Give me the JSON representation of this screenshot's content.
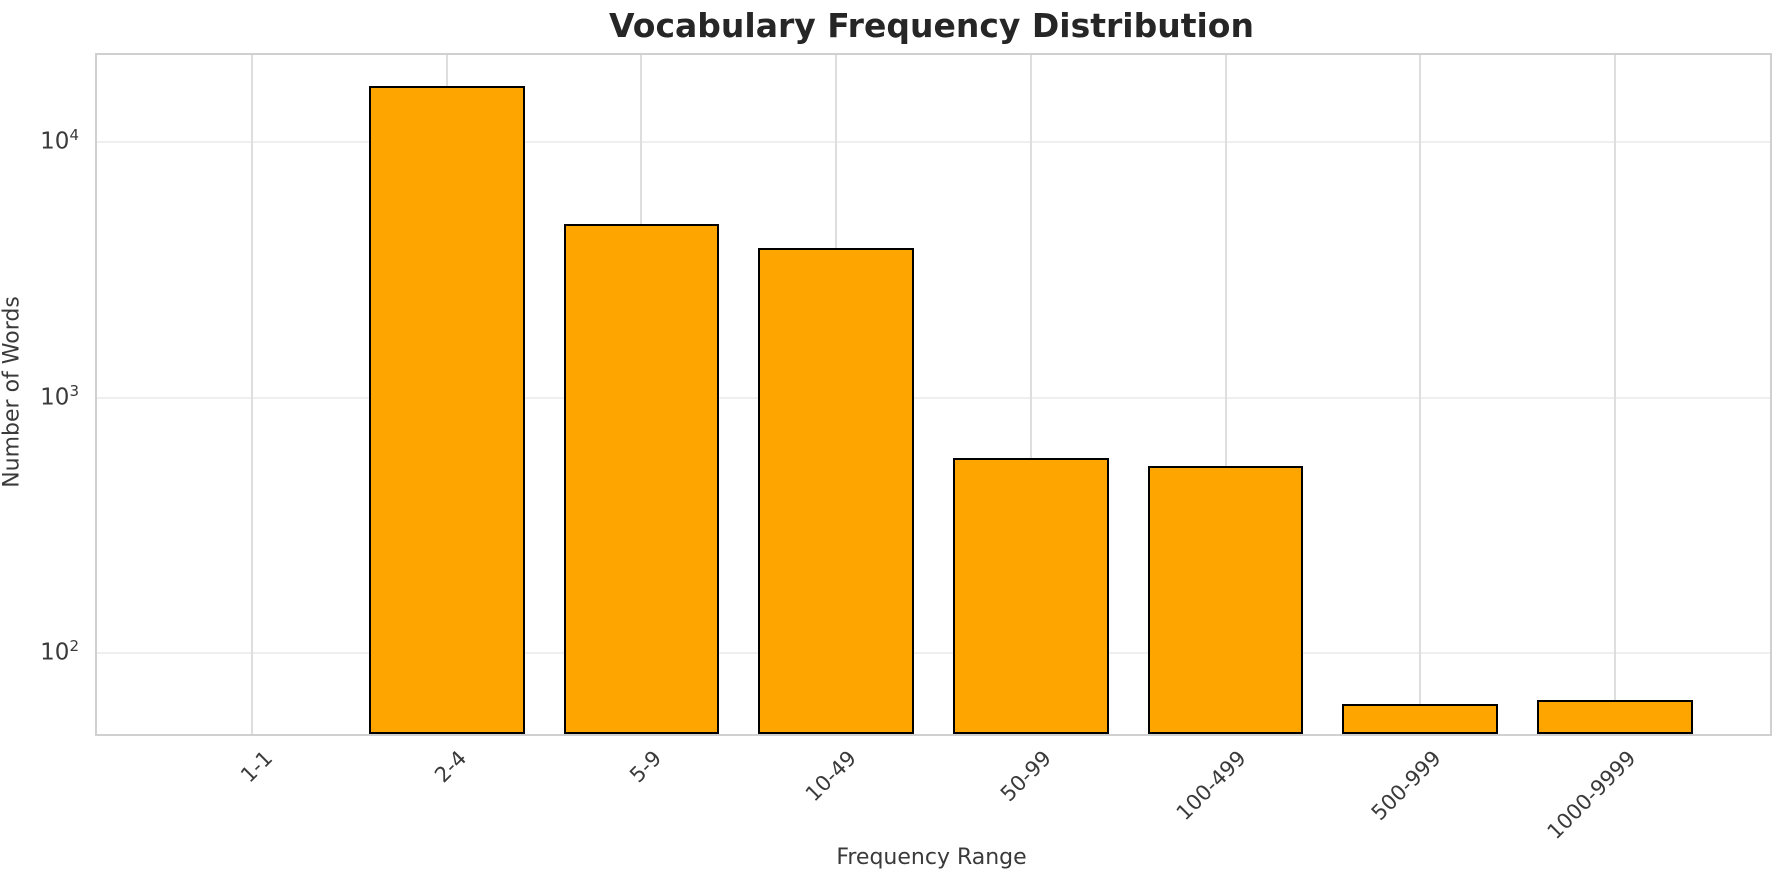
{
  "title": "Vocabulary Frequency Distribution",
  "axes": {
    "xlabel": "Frequency Range",
    "ylabel": "Number of Words"
  },
  "chart_data": {
    "type": "bar",
    "title": "Vocabulary Frequency Distribution",
    "xlabel": "Frequency Range",
    "ylabel": "Number of Words",
    "categories": [
      "1-1",
      "2-4",
      "5-9",
      "10-49",
      "50-99",
      "100-499",
      "500-999",
      "1000-9999"
    ],
    "values": [
      0,
      16700,
      4800,
      3850,
      580,
      540,
      63,
      65
    ],
    "yscale": "log",
    "ylim": [
      48,
      22000
    ],
    "yticks": [
      {
        "value": 100,
        "base": "10",
        "exponent": "2"
      },
      {
        "value": 1000,
        "base": "10",
        "exponent": "3"
      },
      {
        "value": 10000,
        "base": "10",
        "exponent": "4"
      }
    ],
    "grid": true,
    "legend": "none",
    "bar_color": "#FFA500",
    "bar_edge_color": "#000000",
    "grid_color_h": "#efefef",
    "grid_color_v": "#dedede",
    "spine_color": "#d0d0d0",
    "title_color": "#262626",
    "tick_color": "#3a3a3a"
  }
}
